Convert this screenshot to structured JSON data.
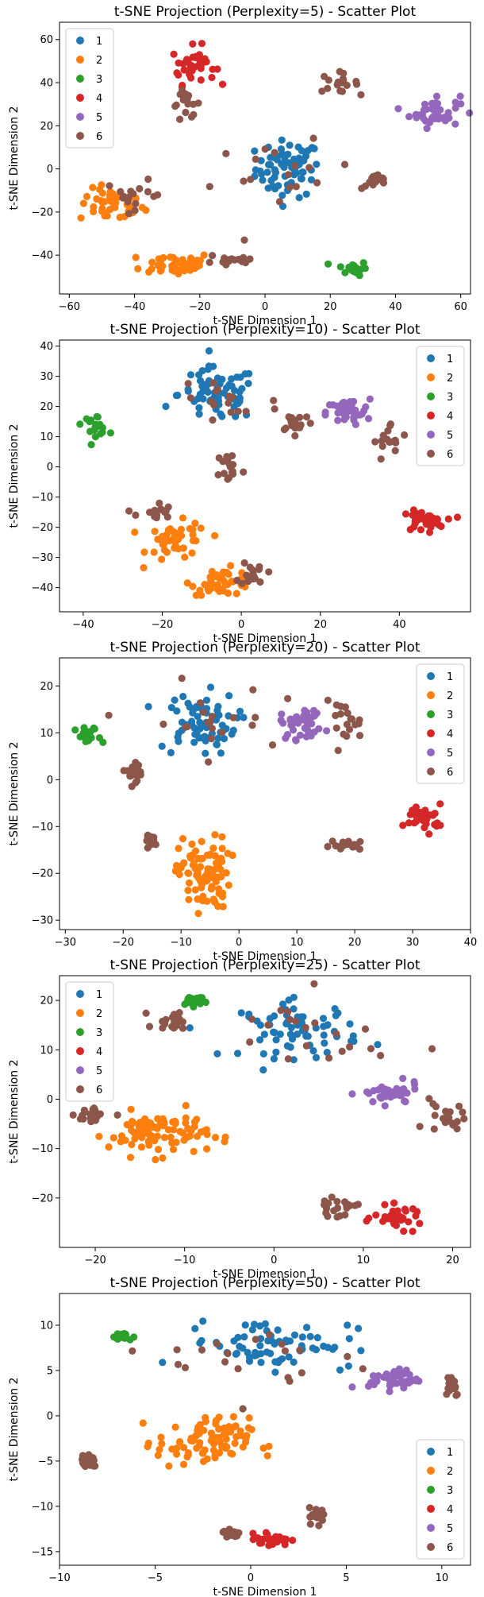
{
  "colors": [
    "#1f77b4",
    "#ff7f0e",
    "#2ca02c",
    "#d62728",
    "#9467bd",
    "#8c564b"
  ],
  "chart_data": [
    {
      "type": "scatter",
      "title": "t-SNE Projection (Perplexity=5) - Scatter Plot",
      "xlabel": "t-SNE Dimension 1",
      "ylabel": "t-SNE Dimension 2",
      "xlim": [
        -63,
        63
      ],
      "ylim": [
        -58,
        68
      ],
      "xticks": [
        -60,
        -40,
        -20,
        0,
        20,
        40,
        60
      ],
      "yticks": [
        -40,
        -20,
        0,
        20,
        40,
        60
      ],
      "legend": "top-left",
      "grid": false,
      "series": [
        {
          "name": "1",
          "centers": [
            [
              7,
              0
            ]
          ],
          "spread": [
            [
              9,
              12
            ]
          ],
          "n": 70
        },
        {
          "name": "2",
          "centers": [
            [
              -47,
              -17
            ],
            [
              -27,
              -44
            ]
          ],
          "spread": [
            [
              9,
              7
            ],
            [
              10,
              5
            ]
          ],
          "n": 90
        },
        {
          "name": "3",
          "centers": [
            [
              27,
              -46
            ]
          ],
          "spread": [
            [
              4,
              3
            ]
          ],
          "n": 18
        },
        {
          "name": "4",
          "centers": [
            [
              -22,
              48
            ]
          ],
          "spread": [
            [
              6,
              8
            ]
          ],
          "n": 36
        },
        {
          "name": "5",
          "centers": [
            [
              52,
              27
            ]
          ],
          "spread": [
            [
              7,
              7
            ]
          ],
          "n": 40
        },
        {
          "name": "6",
          "centers": [
            [
              5,
              -5
            ],
            [
              -40,
              -12
            ],
            [
              -24,
              30
            ],
            [
              22,
              40
            ],
            [
              34,
              -6
            ],
            [
              -10,
              -42
            ]
          ],
          "spread": [
            [
              20,
              15
            ],
            [
              8,
              6
            ],
            [
              4,
              6
            ],
            [
              6,
              4
            ],
            [
              4,
              3
            ],
            [
              8,
              4
            ]
          ],
          "n": 100
        }
      ]
    },
    {
      "type": "scatter",
      "title": "t-SNE Projection (Perplexity=10) - Scatter Plot",
      "xlabel": "t-SNE Dimension 1",
      "ylabel": "t-SNE Dimension 2",
      "xlim": [
        -46,
        58
      ],
      "ylim": [
        -48,
        42
      ],
      "xticks": [
        -40,
        -20,
        0,
        20,
        40
      ],
      "yticks": [
        -40,
        -30,
        -20,
        -10,
        0,
        10,
        20,
        30,
        40
      ],
      "legend": "top-right",
      "grid": false,
      "series": [
        {
          "name": "1",
          "centers": [
            [
              -6,
              24
            ]
          ],
          "spread": [
            [
              9,
              8
            ]
          ],
          "n": 70
        },
        {
          "name": "2",
          "centers": [
            [
              -16,
              -25
            ],
            [
              -5,
              -38
            ]
          ],
          "spread": [
            [
              7,
              6
            ],
            [
              7,
              4
            ]
          ],
          "n": 90
        },
        {
          "name": "3",
          "centers": [
            [
              -37,
              14
            ]
          ],
          "spread": [
            [
              3,
              3
            ]
          ],
          "n": 18
        },
        {
          "name": "4",
          "centers": [
            [
              46,
              -18
            ]
          ],
          "spread": [
            [
              5,
              3
            ]
          ],
          "n": 36
        },
        {
          "name": "5",
          "centers": [
            [
              27,
              18
            ]
          ],
          "spread": [
            [
              5,
              4
            ]
          ],
          "n": 40
        },
        {
          "name": "6",
          "centers": [
            [
              -5,
              22
            ],
            [
              -3,
              0
            ],
            [
              14,
              15
            ],
            [
              38,
              8
            ],
            [
              -22,
              -15
            ],
            [
              3,
              -35
            ]
          ],
          "spread": [
            [
              14,
              12
            ],
            [
              3,
              5
            ],
            [
              4,
              3
            ],
            [
              4,
              6
            ],
            [
              4,
              3
            ],
            [
              3,
              4
            ]
          ],
          "n": 100
        }
      ]
    },
    {
      "type": "scatter",
      "title": "t-SNE Projection (Perplexity=20) - Scatter Plot",
      "xlabel": "t-SNE Dimension 1",
      "ylabel": "t-SNE Dimension 2",
      "xlim": [
        -31,
        40
      ],
      "ylim": [
        -32,
        26
      ],
      "xticks": [
        -30,
        -20,
        -10,
        0,
        10,
        20,
        30,
        40
      ],
      "yticks": [
        -30,
        -20,
        -10,
        0,
        10,
        20
      ],
      "legend": "top-right",
      "grid": false,
      "series": [
        {
          "name": "1",
          "centers": [
            [
              -7,
              12
            ]
          ],
          "spread": [
            [
              6,
              6
            ]
          ],
          "n": 70
        },
        {
          "name": "2",
          "centers": [
            [
              -6,
              -20
            ]
          ],
          "spread": [
            [
              4,
              7
            ]
          ],
          "n": 90
        },
        {
          "name": "3",
          "centers": [
            [
              -26,
              9
            ]
          ],
          "spread": [
            [
              2,
              2
            ]
          ],
          "n": 18
        },
        {
          "name": "4",
          "centers": [
            [
              32,
              -8
            ]
          ],
          "spread": [
            [
              3,
              2.5
            ]
          ],
          "n": 36
        },
        {
          "name": "5",
          "centers": [
            [
              11,
              12
            ]
          ],
          "spread": [
            [
              3.5,
              3
            ]
          ],
          "n": 40
        },
        {
          "name": "6",
          "centers": [
            [
              -6,
              12
            ],
            [
              -18,
              2
            ],
            [
              18,
              12
            ],
            [
              19,
              -14
            ],
            [
              -15,
              -13
            ]
          ],
          "spread": [
            [
              10,
              8
            ],
            [
              2,
              2
            ],
            [
              3,
              4
            ],
            [
              3,
              1
            ],
            [
              1,
              1
            ]
          ],
          "n": 100
        }
      ]
    },
    {
      "type": "scatter",
      "title": "t-SNE Projection (Perplexity=25) - Scatter Plot",
      "xlabel": "t-SNE Dimension 1",
      "ylabel": "t-SNE Dimension 2",
      "xlim": [
        -24,
        22
      ],
      "ylim": [
        -30,
        25
      ],
      "xticks": [
        -20,
        -10,
        0,
        10,
        20
      ],
      "yticks": [
        -20,
        -10,
        0,
        10,
        20
      ],
      "legend": "top-left",
      "grid": false,
      "series": [
        {
          "name": "1",
          "centers": [
            [
              3,
              14
            ]
          ],
          "spread": [
            [
              6,
              5
            ]
          ],
          "n": 70
        },
        {
          "name": "2",
          "centers": [
            [
              -13,
              -7
            ]
          ],
          "spread": [
            [
              5,
              4
            ]
          ],
          "n": 90
        },
        {
          "name": "3",
          "centers": [
            [
              -9,
              20
            ]
          ],
          "spread": [
            [
              1.5,
              1
            ]
          ],
          "n": 18
        },
        {
          "name": "4",
          "centers": [
            [
              14,
              -24
            ]
          ],
          "spread": [
            [
              2.5,
              2
            ]
          ],
          "n": 36
        },
        {
          "name": "5",
          "centers": [
            [
              13,
              1
            ]
          ],
          "spread": [
            [
              3,
              2
            ]
          ],
          "n": 40
        },
        {
          "name": "6",
          "centers": [
            [
              3,
              12
            ],
            [
              -20,
              -3
            ],
            [
              19,
              -4
            ],
            [
              7,
              -22
            ],
            [
              -11,
              16
            ]
          ],
          "spread": [
            [
              9,
              8
            ],
            [
              2,
              2
            ],
            [
              2,
              3
            ],
            [
              2,
              1.5
            ],
            [
              2,
              2
            ]
          ],
          "n": 100
        }
      ]
    },
    {
      "type": "scatter",
      "title": "t-SNE Projection (Perplexity=50) - Scatter Plot",
      "xlabel": "t-SNE Dimension 1",
      "ylabel": "t-SNE Dimension 2",
      "xlim": [
        -10,
        11.5
      ],
      "ylim": [
        -16.5,
        13.5
      ],
      "xticks": [
        -10,
        -5,
        0,
        5,
        10
      ],
      "yticks": [
        -15,
        -10,
        -5,
        0,
        5,
        10
      ],
      "legend": "bottom-right",
      "grid": false,
      "series": [
        {
          "name": "1",
          "centers": [
            [
              1,
              8
            ]
          ],
          "spread": [
            [
              4,
              2.5
            ]
          ],
          "n": 70
        },
        {
          "name": "2",
          "centers": [
            [
              -2.5,
              -3
            ]
          ],
          "spread": [
            [
              2.2,
              2.5
            ]
          ],
          "n": 90
        },
        {
          "name": "3",
          "centers": [
            [
              -6.8,
              8.7
            ]
          ],
          "spread": [
            [
              0.6,
              0.4
            ]
          ],
          "n": 18
        },
        {
          "name": "4",
          "centers": [
            [
              1.2,
              -13.6
            ]
          ],
          "spread": [
            [
              0.8,
              0.6
            ]
          ],
          "n": 36
        },
        {
          "name": "5",
          "centers": [
            [
              7.5,
              4
            ]
          ],
          "spread": [
            [
              1.2,
              1
            ]
          ],
          "n": 40
        },
        {
          "name": "6",
          "centers": [
            [
              1,
              6
            ],
            [
              -8.5,
              -5
            ],
            [
              10.5,
              3.5
            ],
            [
              -1,
              -13
            ],
            [
              3.5,
              -11
            ]
          ],
          "spread": [
            [
              5,
              4
            ],
            [
              0.5,
              1
            ],
            [
              0.4,
              1.2
            ],
            [
              0.4,
              0.5
            ],
            [
              0.4,
              0.8
            ]
          ],
          "n": 100
        }
      ]
    }
  ]
}
